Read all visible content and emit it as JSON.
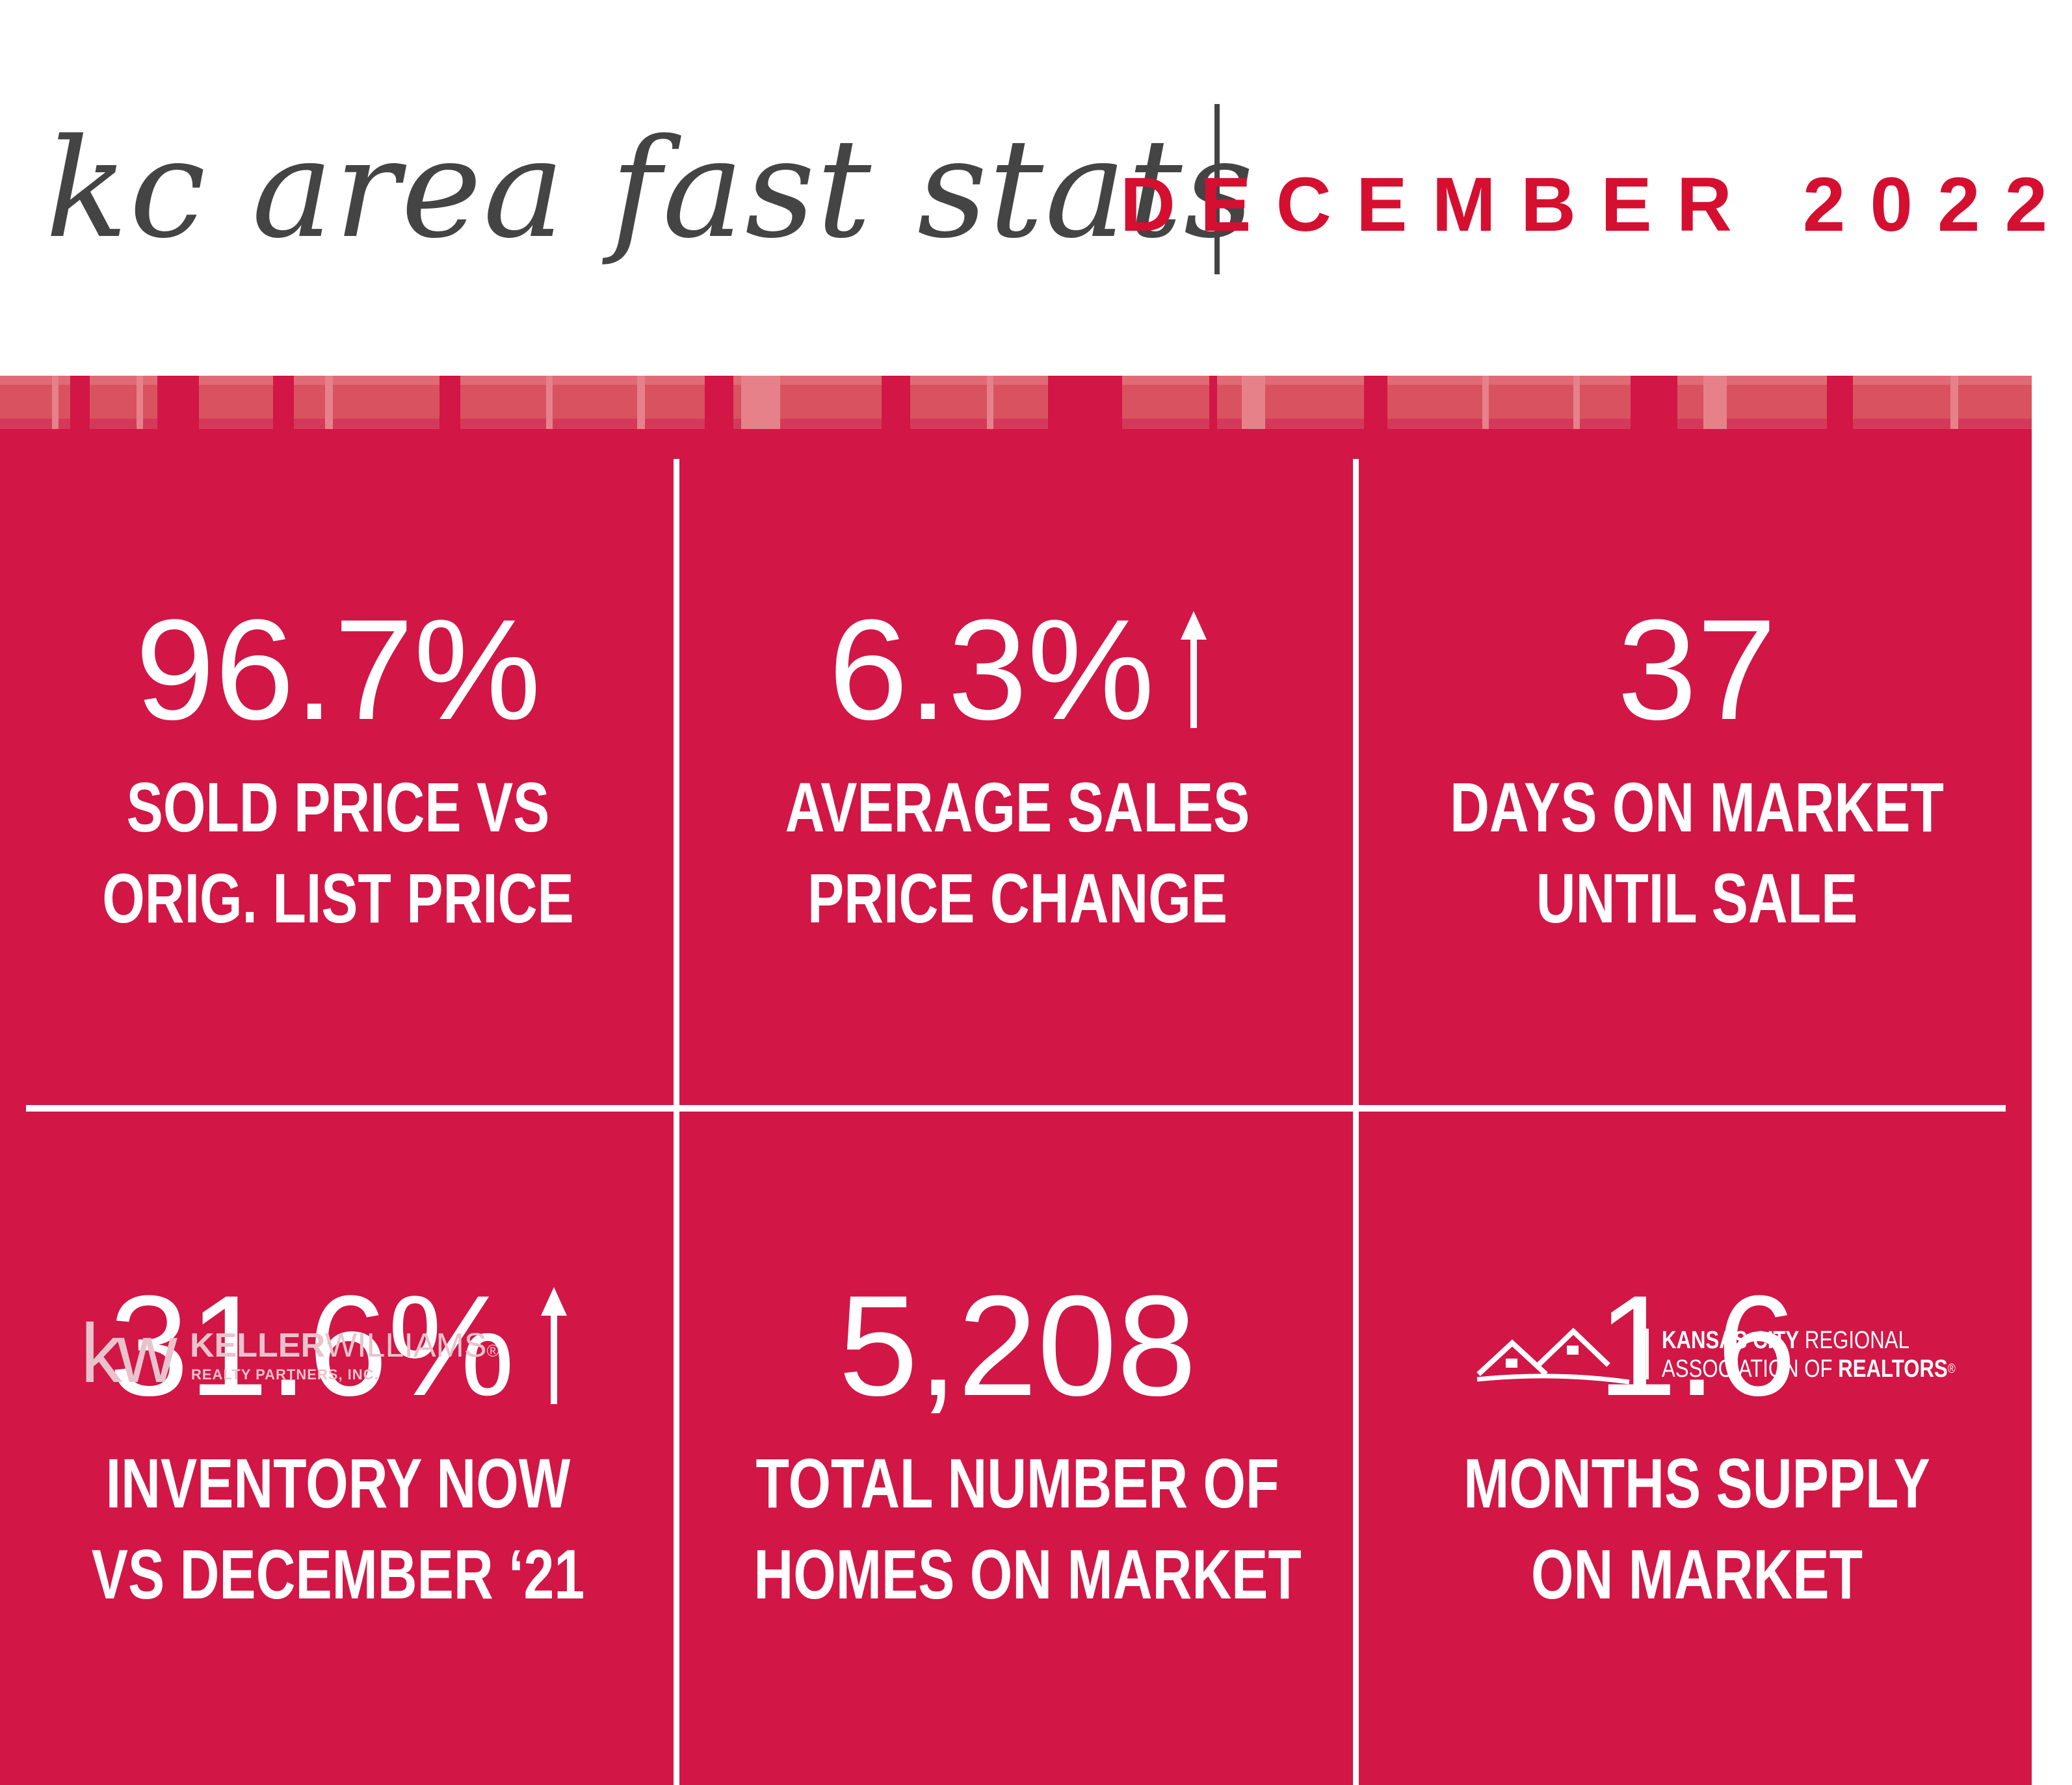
{
  "header": {
    "script_title": "kc area fast stats",
    "month_title": "DECEMBER 2022"
  },
  "colors": {
    "brand_red": "#d21646",
    "title_red": "#d50f2f",
    "title_gray": "#444444",
    "text_white": "#ffffff"
  },
  "stats": [
    {
      "value": "96.7%",
      "arrow": "",
      "label_line1": "SOLD PRICE VS",
      "label_line2": "ORIG. LIST PRICE"
    },
    {
      "value": "6.3%",
      "arrow": "up-arrow-icon",
      "label_line1": "AVERAGE SALES",
      "label_line2": "PRICE CHANGE"
    },
    {
      "value": "37",
      "arrow": "",
      "label_line1": "DAYS ON MARKET",
      "label_line2": "UNTIL SALE"
    },
    {
      "value": "31.6%",
      "arrow": "up-arrow-icon",
      "label_line1": "INVENTORY NOW",
      "label_line2": "VS DECEMBER ‘21"
    },
    {
      "value": "5,208",
      "arrow": "",
      "label_line1": "TOTAL NUMBER OF",
      "label_line2": "HOMES ON MARKET"
    },
    {
      "value": "1.6",
      "arrow": "",
      "label_line1": "MONTHS SUPPLY",
      "label_line2": "ON MARKET"
    }
  ],
  "footer": {
    "kw_mark": "kw",
    "kw_name_bold": "KELLER",
    "kw_name_light": "WILLIAMS",
    "kw_registered": "®",
    "kw_sub": "REALTY PARTNERS, INC.",
    "kcrar_line1_bold": "KANSAS CITY",
    "kcrar_line1_light": " REGIONAL",
    "kcrar_line2_light": "ASSOCIATION OF ",
    "kcrar_line2_bold": "REALTORS",
    "kcrar_registered": "®"
  }
}
